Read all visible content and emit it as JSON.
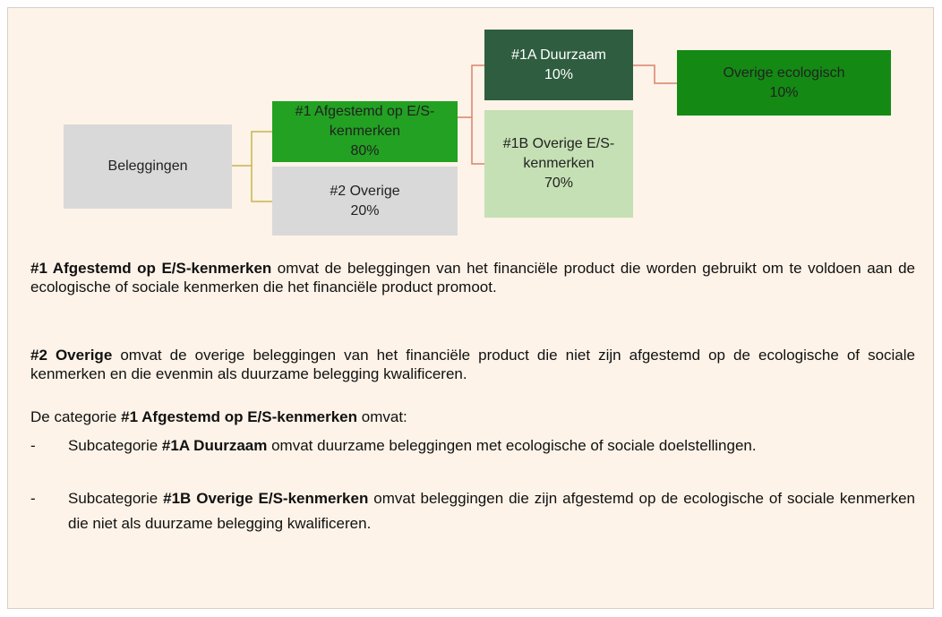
{
  "nodes": [
    {
      "label": "Beleggingen"
    },
    {
      "label": "#1 Afgestemd op E/S-kenmerken",
      "value": "80%"
    },
    {
      "label": "#2 Overige",
      "value": "20%"
    },
    {
      "label": "#1A Duurzaam",
      "value": "10%"
    },
    {
      "label": "#1B Overige E/S-kenmerken",
      "value": "70%"
    },
    {
      "label": "Overige ecologisch",
      "value": "10%"
    }
  ],
  "paragraphs": [
    {
      "bold": "#1 Afgestemd op E/S-kenmerken",
      "after": " omvat de beleggingen van het financiële product die worden gebruikt om te voldoen aan de ecologische of sociale kenmerken die het financiële product promoot."
    },
    {
      "bold": "#2 Overige",
      "after": " omvat de overige beleggingen van het financiële product die niet zijn afgestemd op de ecologische of sociale kenmerken en die evenmin als duurzame belegging kwalificeren."
    },
    {
      "before": "De categorie ",
      "bold": "#1 Afgestemd op E/S-kenmerken",
      "after": " omvat:"
    }
  ],
  "list": [
    {
      "bullet": "-",
      "before": "Subcategorie ",
      "bold": "#1A Duurzaam",
      "after": " omvat duurzame beleggingen met ecologische of sociale doelstellingen."
    },
    {
      "bullet": "-",
      "before": "Subcategorie ",
      "bold": "#1B Overige E/S-kenmerken",
      "after": " omvat beleggingen die zijn afgestemd op de ecologische of sociale kenmerken die niet als duurzame belegging kwalificeren."
    }
  ]
}
